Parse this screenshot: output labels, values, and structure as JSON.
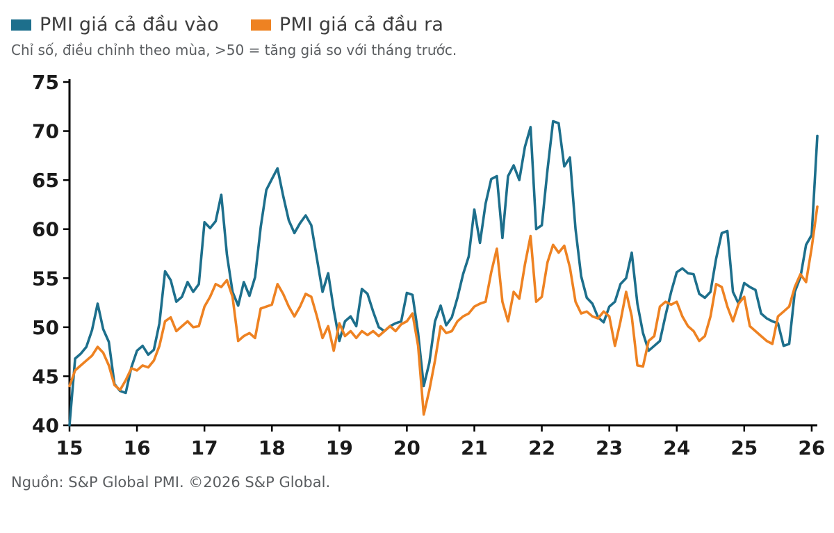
{
  "subtitle": "Chỉ số, điều chỉnh theo mùa, >50 = tăng giá so với tháng trước.",
  "footer": "Nguồn: S&P Global PMI. ©2026 S&P Global.",
  "colors": {
    "input_line": "#1d6f8c",
    "output_line": "#ee8222",
    "axis": "#000000",
    "axis_text": "#1a1a1a"
  },
  "chart_data": {
    "type": "line",
    "title": "",
    "xlabel": "",
    "ylabel": "",
    "ylim": [
      40,
      75
    ],
    "y_ticks": [
      40,
      45,
      50,
      55,
      60,
      65,
      70,
      75
    ],
    "grid": false,
    "legend_position": "top-left",
    "x_start": "2015-01",
    "x_end": "2026-02",
    "x_frequency": "monthly",
    "x_tick_labels": [
      "15",
      "16",
      "17",
      "18",
      "19",
      "20",
      "21",
      "22",
      "23",
      "24",
      "25",
      "26"
    ],
    "series": [
      {
        "name": "PMI giá cả đầu vào",
        "color": "#1d6f8c",
        "values": [
          40.0,
          46.8,
          47.3,
          48.0,
          49.7,
          52.4,
          49.8,
          48.5,
          44.2,
          43.5,
          43.3,
          45.9,
          47.6,
          48.1,
          47.2,
          47.7,
          50.4,
          55.7,
          54.8,
          52.6,
          53.1,
          54.6,
          53.6,
          54.4,
          60.7,
          60.1,
          60.8,
          63.5,
          57.4,
          53.6,
          52.2,
          54.6,
          53.2,
          55.1,
          60.2,
          64.0,
          65.1,
          66.2,
          63.4,
          60.9,
          59.6,
          60.6,
          61.4,
          60.4,
          57.0,
          53.6,
          55.5,
          51.8,
          48.6,
          50.6,
          51.1,
          50.1,
          53.9,
          53.4,
          51.6,
          50.0,
          49.6,
          50.1,
          50.4,
          50.6,
          53.5,
          53.3,
          49.4,
          44.0,
          46.4,
          50.6,
          52.2,
          50.2,
          51.0,
          53.0,
          55.4,
          57.2,
          62.0,
          58.6,
          62.6,
          65.1,
          65.4,
          59.1,
          65.4,
          66.5,
          65.0,
          68.4,
          70.4,
          60.0,
          60.4,
          66.0,
          71.0,
          70.8,
          66.4,
          67.3,
          60.0,
          55.2,
          53.0,
          52.4,
          51.0,
          50.5,
          52.1,
          52.6,
          54.4,
          55.0,
          57.6,
          52.4,
          49.4,
          47.6,
          48.1,
          48.6,
          51.2,
          53.6,
          55.6,
          56.0,
          55.5,
          55.4,
          53.4,
          53.0,
          53.6,
          57.0,
          59.6,
          59.8,
          53.6,
          52.4,
          54.5,
          54.1,
          53.8,
          51.4,
          50.9,
          50.6,
          50.4,
          48.1,
          48.3,
          53.6,
          55.1,
          58.4,
          59.4,
          69.5
        ]
      },
      {
        "name": "PMI giá cả đầu ra",
        "color": "#ee8222",
        "values": [
          44.0,
          45.6,
          46.1,
          46.6,
          47.1,
          48.0,
          47.4,
          46.1,
          44.1,
          43.6,
          44.6,
          45.8,
          45.6,
          46.1,
          45.9,
          46.6,
          48.1,
          50.6,
          51.0,
          49.6,
          50.1,
          50.6,
          50.0,
          50.1,
          52.1,
          53.1,
          54.4,
          54.1,
          54.8,
          53.1,
          48.6,
          49.1,
          49.4,
          48.9,
          51.9,
          52.1,
          52.3,
          54.4,
          53.4,
          52.1,
          51.1,
          52.1,
          53.4,
          53.1,
          51.1,
          48.9,
          50.1,
          47.6,
          50.4,
          49.1,
          49.6,
          48.9,
          49.6,
          49.2,
          49.6,
          49.1,
          49.6,
          50.1,
          49.6,
          50.3,
          50.6,
          51.4,
          48.1,
          41.1,
          43.6,
          46.6,
          50.1,
          49.4,
          49.6,
          50.6,
          51.1,
          51.4,
          52.1,
          52.4,
          52.6,
          55.6,
          58.0,
          52.6,
          50.6,
          53.6,
          52.9,
          56.4,
          59.3,
          52.6,
          53.1,
          56.6,
          58.4,
          57.6,
          58.3,
          56.1,
          52.6,
          51.4,
          51.6,
          51.1,
          50.9,
          51.6,
          51.1,
          48.1,
          50.6,
          53.6,
          51.1,
          46.1,
          46.0,
          48.6,
          49.1,
          52.1,
          52.6,
          52.3,
          52.6,
          51.1,
          50.1,
          49.6,
          48.6,
          49.1,
          51.1,
          54.4,
          54.1,
          52.1,
          50.6,
          52.4,
          53.1,
          50.1,
          49.6,
          49.1,
          48.6,
          48.3,
          51.1,
          51.6,
          52.1,
          54.1,
          55.4,
          54.6,
          58.1,
          62.3
        ]
      }
    ]
  }
}
